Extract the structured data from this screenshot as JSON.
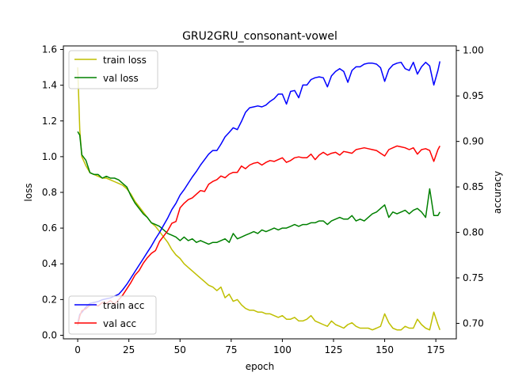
{
  "chart_data": {
    "type": "line",
    "title": "GRU2GRU_consonant-vowel",
    "xlabel": "epoch",
    "ylabel": "loss",
    "y2label": "accuracy",
    "xlim": [
      -7,
      185
    ],
    "ylim": [
      -0.02,
      1.62
    ],
    "y2lim": [
      0.683,
      1.005
    ],
    "xticks": [
      0,
      25,
      50,
      75,
      100,
      125,
      150,
      175
    ],
    "yticks": [
      0.0,
      0.2,
      0.4,
      0.6,
      0.8,
      1.0,
      1.2,
      1.4,
      1.6
    ],
    "y2ticks": [
      0.7,
      0.75,
      0.8,
      0.85,
      0.9,
      0.95,
      1.0
    ],
    "grid": false,
    "legend_loss_placement": "top-left",
    "legend_acc_placement": "bottom-left",
    "series": [
      {
        "name": "train loss",
        "axis": "left",
        "color": "#bfbf00",
        "x": [
          0,
          1,
          2,
          4,
          6,
          8,
          10,
          12,
          14,
          16,
          18,
          20,
          22,
          24,
          26,
          28,
          30,
          32,
          34,
          36,
          38,
          40,
          42,
          44,
          46,
          48,
          50,
          52,
          54,
          56,
          58,
          60,
          62,
          64,
          66,
          68,
          70,
          72,
          74,
          76,
          78,
          80,
          82,
          84,
          86,
          88,
          90,
          92,
          94,
          96,
          98,
          100,
          102,
          104,
          106,
          108,
          110,
          112,
          114,
          116,
          118,
          120,
          122,
          124,
          126,
          128,
          130,
          132,
          134,
          136,
          138,
          140,
          142,
          144,
          146,
          148,
          150,
          152,
          154,
          156,
          158,
          160,
          162,
          164,
          166,
          168,
          170,
          172,
          174,
          176,
          177
        ],
        "values": [
          1.5,
          1.15,
          1.0,
          0.95,
          0.91,
          0.9,
          0.89,
          0.88,
          0.88,
          0.87,
          0.86,
          0.85,
          0.84,
          0.82,
          0.79,
          0.75,
          0.72,
          0.69,
          0.66,
          0.63,
          0.61,
          0.58,
          0.55,
          0.52,
          0.48,
          0.45,
          0.43,
          0.4,
          0.38,
          0.36,
          0.34,
          0.32,
          0.3,
          0.28,
          0.27,
          0.25,
          0.27,
          0.21,
          0.23,
          0.19,
          0.2,
          0.17,
          0.15,
          0.14,
          0.14,
          0.13,
          0.13,
          0.12,
          0.12,
          0.11,
          0.1,
          0.11,
          0.09,
          0.09,
          0.1,
          0.08,
          0.08,
          0.09,
          0.11,
          0.08,
          0.07,
          0.06,
          0.05,
          0.08,
          0.06,
          0.05,
          0.04,
          0.06,
          0.07,
          0.05,
          0.04,
          0.04,
          0.04,
          0.03,
          0.04,
          0.05,
          0.12,
          0.07,
          0.04,
          0.03,
          0.03,
          0.05,
          0.04,
          0.04,
          0.09,
          0.06,
          0.04,
          0.03,
          0.13,
          0.06,
          0.03
        ]
      },
      {
        "name": "val loss",
        "axis": "left",
        "color": "#008000",
        "x": [
          0,
          1,
          2,
          4,
          6,
          8,
          10,
          12,
          14,
          16,
          18,
          20,
          22,
          24,
          26,
          28,
          30,
          32,
          34,
          36,
          38,
          40,
          42,
          44,
          46,
          48,
          50,
          52,
          54,
          56,
          58,
          60,
          62,
          64,
          66,
          68,
          70,
          72,
          74,
          76,
          78,
          80,
          82,
          84,
          86,
          88,
          90,
          92,
          94,
          96,
          98,
          100,
          102,
          104,
          106,
          108,
          110,
          112,
          114,
          116,
          118,
          120,
          122,
          124,
          126,
          128,
          130,
          132,
          134,
          136,
          138,
          140,
          142,
          144,
          146,
          148,
          150,
          152,
          154,
          156,
          158,
          160,
          162,
          164,
          166,
          168,
          170,
          172,
          174,
          176,
          177
        ],
        "values": [
          1.14,
          1.12,
          1.01,
          0.98,
          0.91,
          0.9,
          0.9,
          0.88,
          0.89,
          0.88,
          0.88,
          0.87,
          0.85,
          0.83,
          0.78,
          0.74,
          0.71,
          0.68,
          0.66,
          0.63,
          0.62,
          0.61,
          0.59,
          0.57,
          0.56,
          0.55,
          0.53,
          0.55,
          0.53,
          0.54,
          0.52,
          0.53,
          0.52,
          0.51,
          0.52,
          0.52,
          0.53,
          0.54,
          0.52,
          0.57,
          0.54,
          0.55,
          0.56,
          0.57,
          0.58,
          0.57,
          0.59,
          0.58,
          0.59,
          0.6,
          0.59,
          0.6,
          0.6,
          0.61,
          0.62,
          0.61,
          0.62,
          0.62,
          0.63,
          0.63,
          0.64,
          0.64,
          0.62,
          0.64,
          0.65,
          0.66,
          0.65,
          0.65,
          0.67,
          0.64,
          0.65,
          0.64,
          0.66,
          0.68,
          0.69,
          0.71,
          0.73,
          0.66,
          0.69,
          0.68,
          0.69,
          0.7,
          0.68,
          0.7,
          0.71,
          0.69,
          0.66,
          0.82,
          0.67,
          0.67,
          0.69
        ]
      },
      {
        "name": "train acc",
        "axis": "right",
        "color": "#0000ff",
        "x": [
          0,
          1,
          2,
          4,
          6,
          8,
          10,
          12,
          14,
          16,
          18,
          20,
          22,
          24,
          26,
          28,
          30,
          32,
          34,
          36,
          38,
          40,
          42,
          44,
          46,
          48,
          50,
          52,
          54,
          56,
          58,
          60,
          62,
          64,
          66,
          68,
          70,
          72,
          74,
          76,
          78,
          80,
          82,
          84,
          86,
          88,
          90,
          92,
          94,
          96,
          98,
          100,
          102,
          104,
          106,
          108,
          110,
          112,
          114,
          116,
          118,
          120,
          122,
          124,
          126,
          128,
          130,
          132,
          134,
          136,
          138,
          140,
          142,
          144,
          146,
          148,
          150,
          152,
          154,
          156,
          158,
          160,
          162,
          164,
          166,
          168,
          170,
          172,
          174,
          176,
          177
        ],
        "values": [
          0.7,
          0.71,
          0.712,
          0.718,
          0.722,
          0.723,
          0.724,
          0.726,
          0.727,
          0.728,
          0.73,
          0.732,
          0.737,
          0.743,
          0.75,
          0.757,
          0.764,
          0.771,
          0.778,
          0.785,
          0.793,
          0.8,
          0.808,
          0.816,
          0.825,
          0.832,
          0.841,
          0.847,
          0.854,
          0.861,
          0.867,
          0.874,
          0.88,
          0.886,
          0.89,
          0.89,
          0.897,
          0.905,
          0.91,
          0.915,
          0.913,
          0.922,
          0.932,
          0.937,
          0.938,
          0.939,
          0.938,
          0.94,
          0.944,
          0.947,
          0.952,
          0.952,
          0.941,
          0.955,
          0.956,
          0.948,
          0.962,
          0.962,
          0.968,
          0.97,
          0.971,
          0.97,
          0.96,
          0.972,
          0.977,
          0.98,
          0.977,
          0.965,
          0.978,
          0.982,
          0.982,
          0.985,
          0.986,
          0.986,
          0.985,
          0.981,
          0.966,
          0.979,
          0.984,
          0.986,
          0.987,
          0.98,
          0.978,
          0.987,
          0.974,
          0.982,
          0.987,
          0.983,
          0.962,
          0.978,
          0.988
        ]
      },
      {
        "name": "val acc",
        "axis": "right",
        "color": "#ff0000",
        "x": [
          0,
          1,
          2,
          4,
          6,
          8,
          10,
          12,
          14,
          16,
          18,
          20,
          22,
          24,
          26,
          28,
          30,
          32,
          34,
          36,
          38,
          40,
          42,
          44,
          46,
          48,
          50,
          52,
          54,
          56,
          58,
          60,
          62,
          64,
          66,
          68,
          70,
          72,
          74,
          76,
          78,
          80,
          82,
          84,
          86,
          88,
          90,
          92,
          94,
          96,
          98,
          100,
          102,
          104,
          106,
          108,
          110,
          112,
          114,
          116,
          118,
          120,
          122,
          124,
          126,
          128,
          130,
          132,
          134,
          136,
          138,
          140,
          142,
          144,
          146,
          148,
          150,
          152,
          154,
          156,
          158,
          160,
          162,
          164,
          166,
          168,
          170,
          172,
          174,
          176,
          177
        ],
        "values": [
          0.698,
          0.708,
          0.714,
          0.716,
          0.72,
          0.721,
          0.719,
          0.723,
          0.722,
          0.725,
          0.721,
          0.726,
          0.731,
          0.738,
          0.745,
          0.753,
          0.758,
          0.766,
          0.772,
          0.777,
          0.78,
          0.79,
          0.796,
          0.802,
          0.81,
          0.812,
          0.827,
          0.832,
          0.836,
          0.838,
          0.842,
          0.846,
          0.845,
          0.853,
          0.856,
          0.858,
          0.862,
          0.86,
          0.864,
          0.866,
          0.866,
          0.873,
          0.87,
          0.874,
          0.876,
          0.877,
          0.874,
          0.877,
          0.879,
          0.878,
          0.88,
          0.882,
          0.877,
          0.879,
          0.882,
          0.883,
          0.882,
          0.882,
          0.886,
          0.88,
          0.885,
          0.888,
          0.885,
          0.887,
          0.888,
          0.885,
          0.889,
          0.888,
          0.887,
          0.891,
          0.892,
          0.893,
          0.892,
          0.891,
          0.89,
          0.887,
          0.884,
          0.891,
          0.893,
          0.895,
          0.894,
          0.893,
          0.891,
          0.893,
          0.886,
          0.891,
          0.892,
          0.89,
          0.878,
          0.891,
          0.895
        ]
      }
    ]
  }
}
